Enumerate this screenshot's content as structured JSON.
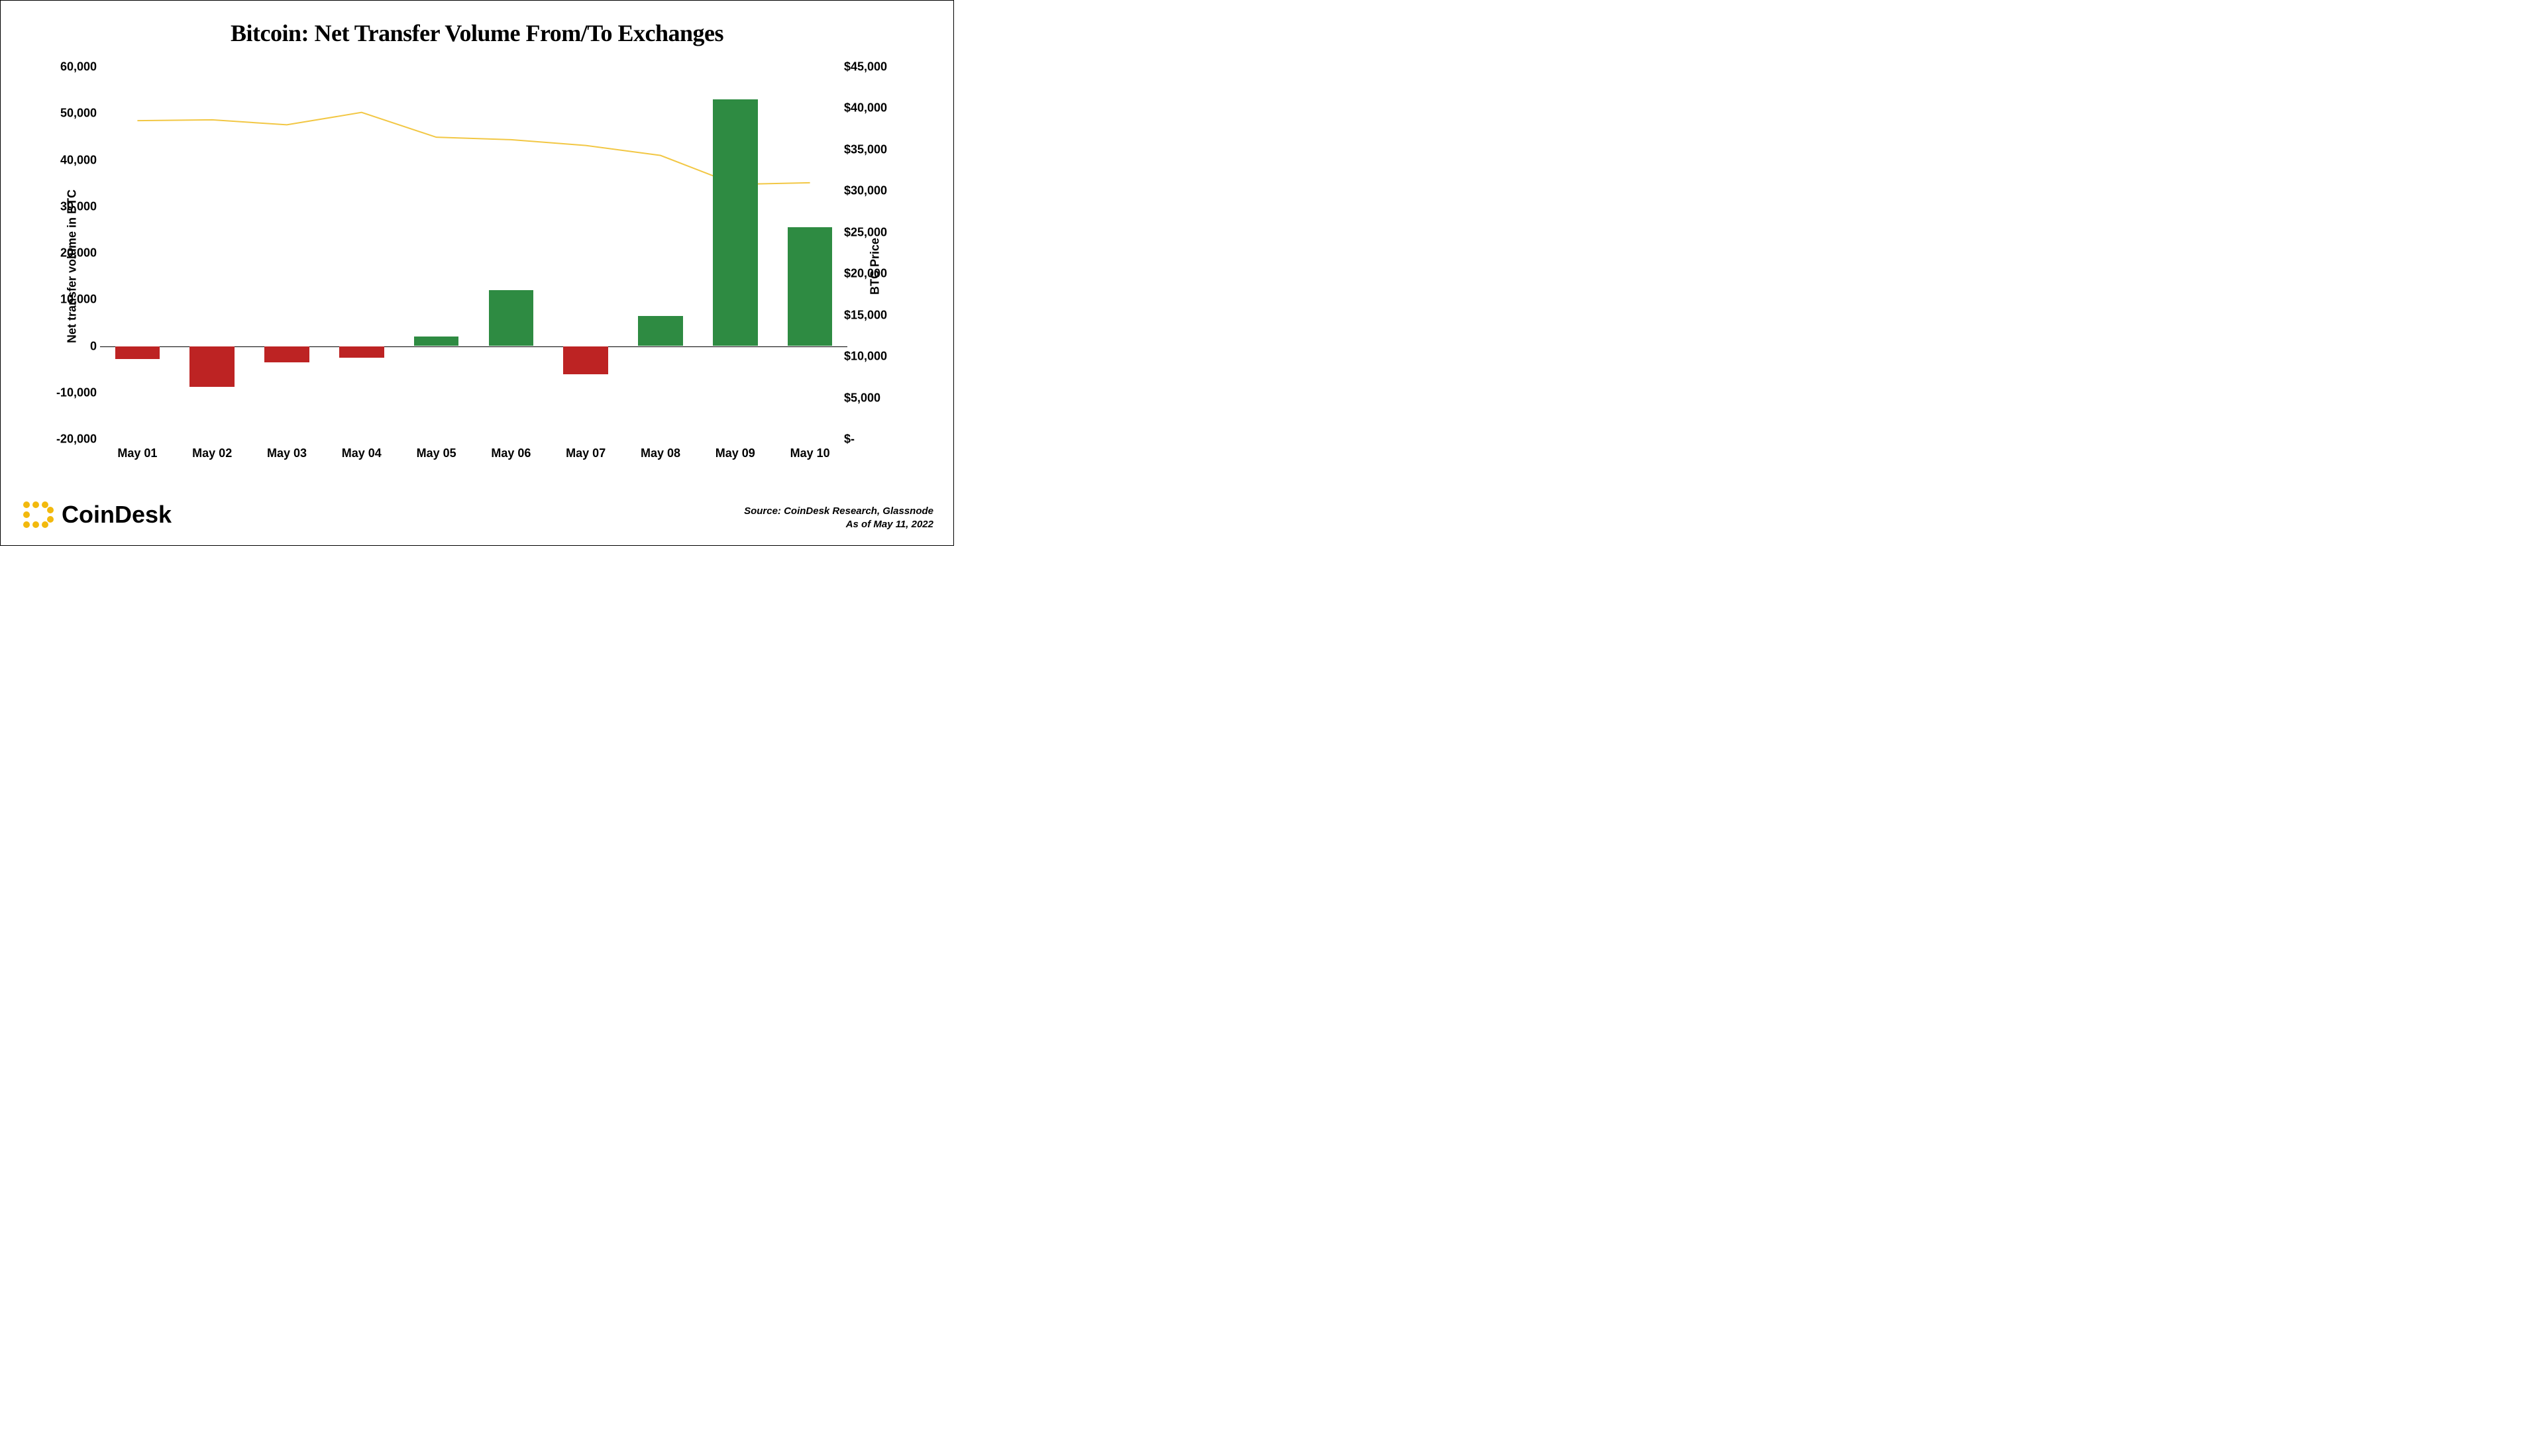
{
  "chart": {
    "type": "bar+line",
    "title": "Bitcoin: Net Transfer Volume From/To Exchanges",
    "title_fontsize": 36,
    "title_font": "Georgia serif",
    "background_color": "#ffffff",
    "y_left": {
      "label": "Net transfer volume in BTC",
      "min": -20000,
      "max": 60000,
      "ticks": [
        -20000,
        -10000,
        0,
        10000,
        20000,
        30000,
        40000,
        50000,
        60000
      ],
      "tick_labels": [
        "-20,000",
        "-10,000",
        "0",
        "10,000",
        "20,000",
        "30,000",
        "40,000",
        "50,000",
        "60,000"
      ],
      "label_fontsize": 18
    },
    "y_right": {
      "label": "BTC Price",
      "min": 0,
      "max": 45000,
      "ticks": [
        0,
        5000,
        10000,
        15000,
        20000,
        25000,
        30000,
        35000,
        40000,
        45000
      ],
      "tick_labels": [
        "$-",
        "$5,000",
        "$10,000",
        "$15,000",
        "$20,000",
        "$25,000",
        "$30,000",
        "$35,000",
        "$40,000",
        "$45,000"
      ],
      "label_fontsize": 18
    },
    "x": {
      "categories": [
        "May 01",
        "May 02",
        "May 03",
        "May 04",
        "May 05",
        "May 06",
        "May 07",
        "May 08",
        "May 09",
        "May 10"
      ],
      "label_fontsize": 18
    },
    "bars": {
      "values": [
        -2800,
        -8800,
        -3500,
        -2500,
        2000,
        12000,
        -6000,
        6500,
        53000,
        25500
      ],
      "positive_color": "#2e8b42",
      "negative_color": "#bd2323",
      "bar_width_ratio": 0.6
    },
    "line": {
      "values": [
        38500,
        38600,
        38000,
        39500,
        36500,
        36200,
        35500,
        34300,
        30800,
        31000
      ],
      "color": "#f2c744",
      "width": 2
    },
    "zero_line_color": "#000000",
    "tick_fontsize": 18,
    "tick_fontweight": "700"
  },
  "brand": {
    "name": "CoinDesk",
    "logo_color": "#f2b90e"
  },
  "source": {
    "line1": "Source: CoinDesk Research, Glassnode",
    "line2": "As of May 11, 2022"
  }
}
